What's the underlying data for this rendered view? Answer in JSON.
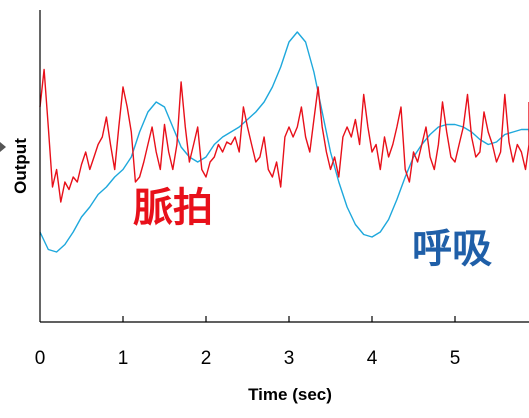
{
  "chart_data": {
    "type": "line",
    "title": "",
    "xlabel": "Time (sec)",
    "ylabel": "Output",
    "xlim": [
      0,
      6
    ],
    "xticks": [
      "0",
      "1",
      "2",
      "3",
      "4",
      "5"
    ],
    "grid": false,
    "legend": "none",
    "series": [
      {
        "name": "脈拍",
        "color": "#e8101a",
        "x": [
          0.0,
          0.05,
          0.1,
          0.15,
          0.2,
          0.25,
          0.3,
          0.35,
          0.4,
          0.45,
          0.5,
          0.55,
          0.6,
          0.65,
          0.7,
          0.75,
          0.8,
          0.85,
          0.9,
          0.95,
          1.0,
          1.05,
          1.1,
          1.15,
          1.2,
          1.25,
          1.3,
          1.35,
          1.4,
          1.45,
          1.5,
          1.55,
          1.6,
          1.65,
          1.7,
          1.75,
          1.8,
          1.85,
          1.9,
          1.95,
          2.0,
          2.05,
          2.1,
          2.15,
          2.2,
          2.25,
          2.3,
          2.35,
          2.4,
          2.45,
          2.5,
          2.55,
          2.6,
          2.65,
          2.7,
          2.75,
          2.8,
          2.85,
          2.9,
          2.95,
          3.0,
          3.05,
          3.1,
          3.15,
          3.2,
          3.25,
          3.3,
          3.35,
          3.4,
          3.45,
          3.5,
          3.55,
          3.6,
          3.65,
          3.7,
          3.75,
          3.8,
          3.85,
          3.9,
          3.95,
          4.0,
          4.05,
          4.1,
          4.15,
          4.2,
          4.25,
          4.3,
          4.35,
          4.4,
          4.45,
          4.5,
          4.55,
          4.6,
          4.65,
          4.7,
          4.75,
          4.8,
          4.85,
          4.9,
          4.95,
          5.0,
          5.05,
          5.1,
          5.15,
          5.2,
          5.25,
          5.3,
          5.35,
          5.4,
          5.45,
          5.5,
          5.55,
          5.6,
          5.65,
          5.7,
          5.75,
          5.8,
          5.85,
          5.9,
          5.95
        ],
        "y": [
          0.7,
          0.85,
          0.62,
          0.38,
          0.45,
          0.32,
          0.4,
          0.37,
          0.42,
          0.4,
          0.47,
          0.52,
          0.45,
          0.5,
          0.55,
          0.58,
          0.66,
          0.55,
          0.45,
          0.62,
          0.78,
          0.7,
          0.6,
          0.4,
          0.42,
          0.48,
          0.55,
          0.62,
          0.52,
          0.45,
          0.63,
          0.52,
          0.45,
          0.55,
          0.8,
          0.62,
          0.48,
          0.55,
          0.62,
          0.45,
          0.42,
          0.48,
          0.5,
          0.55,
          0.52,
          0.56,
          0.55,
          0.58,
          0.52,
          0.7,
          0.62,
          0.55,
          0.48,
          0.5,
          0.58,
          0.45,
          0.42,
          0.48,
          0.38,
          0.58,
          0.62,
          0.58,
          0.62,
          0.7,
          0.58,
          0.52,
          0.65,
          0.78,
          0.62,
          0.52,
          0.45,
          0.5,
          0.42,
          0.58,
          0.62,
          0.58,
          0.65,
          0.55,
          0.75,
          0.62,
          0.52,
          0.55,
          0.45,
          0.58,
          0.5,
          0.55,
          0.62,
          0.7,
          0.45,
          0.4,
          0.52,
          0.48,
          0.55,
          0.62,
          0.5,
          0.45,
          0.55,
          0.72,
          0.6,
          0.5,
          0.48,
          0.55,
          0.62,
          0.75,
          0.58,
          0.5,
          0.52,
          0.68,
          0.6,
          0.55,
          0.48,
          0.52,
          0.75,
          0.56,
          0.48,
          0.55,
          0.52,
          0.45,
          0.55,
          0.72
        ]
      },
      {
        "name": "呼吸",
        "color": "#1ea8dc",
        "x": [
          0.0,
          0.1,
          0.2,
          0.3,
          0.4,
          0.5,
          0.6,
          0.7,
          0.8,
          0.9,
          1.0,
          1.1,
          1.2,
          1.3,
          1.4,
          1.5,
          1.6,
          1.7,
          1.8,
          1.9,
          2.0,
          2.1,
          2.2,
          2.3,
          2.4,
          2.5,
          2.6,
          2.7,
          2.8,
          2.9,
          3.0,
          3.1,
          3.2,
          3.3,
          3.4,
          3.5,
          3.6,
          3.7,
          3.8,
          3.9,
          4.0,
          4.1,
          4.2,
          4.3,
          4.4,
          4.5,
          4.6,
          4.7,
          4.8,
          4.9,
          5.0,
          5.1,
          5.2,
          5.3,
          5.4,
          5.5,
          5.6,
          5.7,
          5.8,
          5.9,
          6.0
        ],
        "y": [
          0.2,
          0.13,
          0.12,
          0.15,
          0.2,
          0.26,
          0.3,
          0.35,
          0.38,
          0.42,
          0.45,
          0.5,
          0.6,
          0.68,
          0.72,
          0.7,
          0.62,
          0.54,
          0.5,
          0.48,
          0.5,
          0.55,
          0.58,
          0.6,
          0.62,
          0.65,
          0.68,
          0.72,
          0.78,
          0.86,
          0.96,
          1.0,
          0.96,
          0.84,
          0.68,
          0.52,
          0.4,
          0.3,
          0.23,
          0.19,
          0.18,
          0.2,
          0.25,
          0.33,
          0.42,
          0.5,
          0.55,
          0.59,
          0.62,
          0.63,
          0.63,
          0.62,
          0.6,
          0.57,
          0.55,
          0.56,
          0.59,
          0.6,
          0.61,
          0.61,
          0.6
        ]
      }
    ],
    "annotations": [
      {
        "text": "脈拍",
        "color": "#e8101a"
      },
      {
        "text": "呼吸",
        "color": "#1f5fa8"
      }
    ]
  }
}
